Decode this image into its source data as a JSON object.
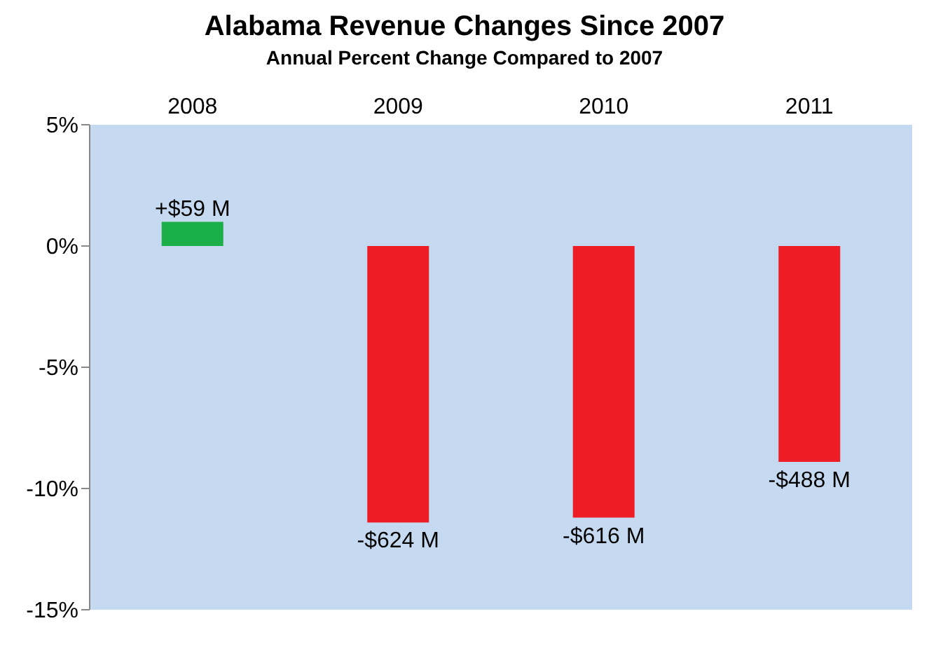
{
  "chart_data": {
    "type": "bar",
    "title": "Alabama Revenue Changes Since 2007",
    "subtitle": "Annual Percent Change Compared to 2007",
    "categories": [
      "2008",
      "2009",
      "2010",
      "2011"
    ],
    "values": [
      1.0,
      -11.4,
      -11.2,
      -8.9
    ],
    "colors": [
      "#1aaf48",
      "#ee1c25",
      "#ee1c25",
      "#ee1c25"
    ],
    "annotations": [
      {
        "text": "+$59 M",
        "x": "2008",
        "y": 1.0
      },
      {
        "text": "-$624 M",
        "x": "2009",
        "y": -11.4
      },
      {
        "text": "-$616 M",
        "x": "2010",
        "y": -11.2
      },
      {
        "text": "-$488 M",
        "x": "2011",
        "y": -8.9
      }
    ],
    "ylim": [
      -15,
      5
    ],
    "yticks": [
      {
        "value": 5,
        "label": "5%"
      },
      {
        "value": 0,
        "label": "0%"
      },
      {
        "value": -5,
        "label": "-5%"
      },
      {
        "value": -10,
        "label": "-10%"
      },
      {
        "value": -15,
        "label": "-15%"
      }
    ],
    "grid": false
  }
}
